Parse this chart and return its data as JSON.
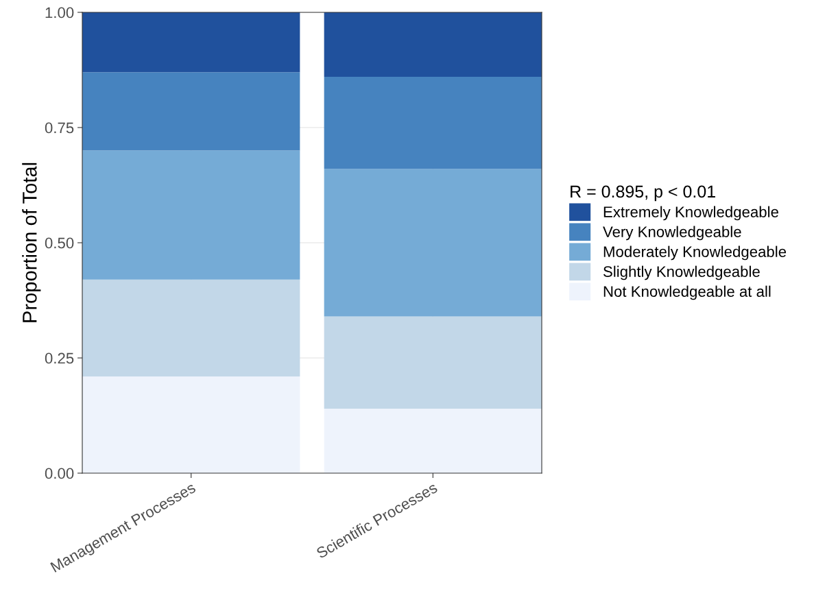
{
  "chart_data": {
    "type": "bar",
    "stacked": true,
    "ylabel": "Proportion of Total",
    "legend_title": "R = 0.895, p < 0.01",
    "categories": [
      "Management Processes",
      "Scientific Processes"
    ],
    "series": [
      {
        "name": "Not Knowledgeable at all",
        "color": "#eef3fc",
        "values": [
          0.21,
          0.14
        ]
      },
      {
        "name": "Slightly Knowledgeable",
        "color": "#c2d7e8",
        "values": [
          0.21,
          0.2
        ]
      },
      {
        "name": "Moderately Knowledgeable",
        "color": "#75abd6",
        "values": [
          0.28,
          0.32
        ]
      },
      {
        "name": "Very Knowledgeable",
        "color": "#4683bf",
        "values": [
          0.17,
          0.2
        ]
      },
      {
        "name": "Extremely Knowledgeable",
        "color": "#20519d",
        "values": [
          0.13,
          0.14
        ]
      }
    ],
    "ylim": [
      0,
      1
    ],
    "yticks": [
      {
        "value": 0,
        "label": "0.00"
      },
      {
        "value": 0.25,
        "label": "0.25"
      },
      {
        "value": 0.5,
        "label": "0.50"
      },
      {
        "value": 0.75,
        "label": "0.75"
      },
      {
        "value": 1,
        "label": "1.00"
      }
    ],
    "grid": true,
    "legend": "right"
  }
}
